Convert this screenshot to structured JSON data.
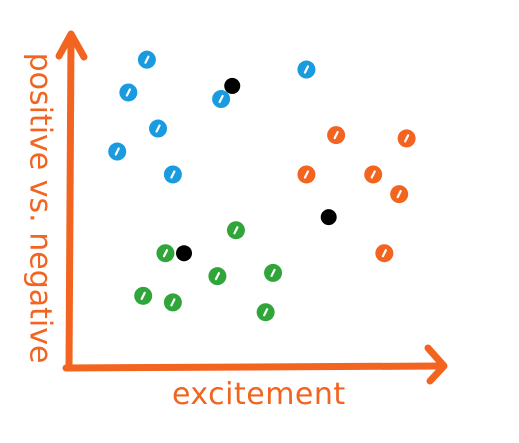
{
  "chart_data": {
    "type": "scatter",
    "title": "",
    "xlabel": "excitement",
    "ylabel": "positive vs. negative",
    "xlim": [
      0,
      10
    ],
    "ylim": [
      0,
      10
    ],
    "grid": false,
    "legend": "none",
    "colors": {
      "axis": "#f2641f",
      "blue": "#1a9be0",
      "orange": "#f2641f",
      "green": "#2fa53a",
      "centroid": "#000000"
    },
    "series": [
      {
        "color": "blue",
        "points": [
          [
            2.1,
            9.4
          ],
          [
            1.6,
            8.4
          ],
          [
            4.1,
            8.2
          ],
          [
            6.4,
            9.1
          ],
          [
            2.4,
            7.3
          ],
          [
            1.3,
            6.6
          ],
          [
            2.8,
            5.9
          ]
        ]
      },
      {
        "color": "orange",
        "points": [
          [
            7.2,
            7.1
          ],
          [
            9.1,
            7.0
          ],
          [
            6.4,
            5.9
          ],
          [
            8.2,
            5.9
          ],
          [
            8.9,
            5.3
          ],
          [
            8.5,
            3.5
          ]
        ]
      },
      {
        "color": "green",
        "points": [
          [
            4.5,
            4.2
          ],
          [
            2.6,
            3.5
          ],
          [
            5.5,
            2.9
          ],
          [
            4.0,
            2.8
          ],
          [
            2.0,
            2.2
          ],
          [
            2.8,
            2.0
          ],
          [
            5.3,
            1.7
          ]
        ]
      },
      {
        "color": "centroid",
        "points": [
          [
            4.4,
            8.6
          ],
          [
            7.0,
            4.6
          ],
          [
            3.1,
            3.5
          ]
        ]
      }
    ]
  }
}
